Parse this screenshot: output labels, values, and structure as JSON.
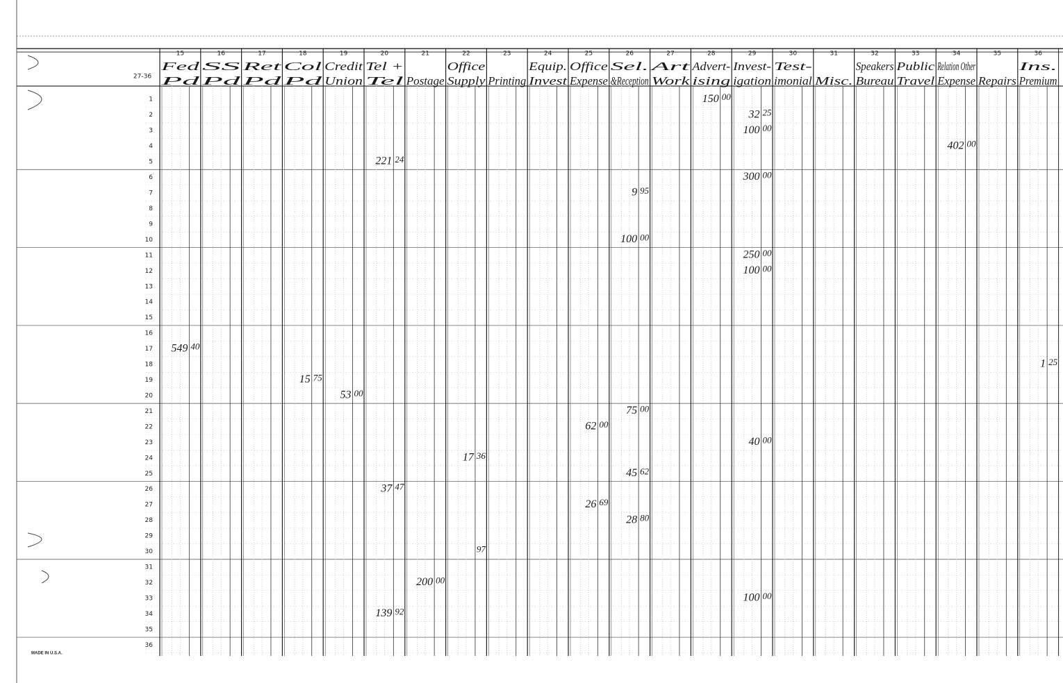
{
  "form": {
    "code": "27-36",
    "footer": "MADE IN U.S.A."
  },
  "columns": [
    {
      "number": "15",
      "header": [
        "Fed",
        "Pd"
      ]
    },
    {
      "number": "16",
      "header": [
        "SS",
        "Pd"
      ]
    },
    {
      "number": "17",
      "header": [
        "Ret",
        "Pd"
      ]
    },
    {
      "number": "18",
      "header": [
        "Col",
        "Pd"
      ]
    },
    {
      "number": "19",
      "header": [
        "Credit",
        "Union"
      ]
    },
    {
      "number": "20",
      "header": [
        "Tel +",
        "Tel"
      ]
    },
    {
      "number": "21",
      "header": [
        "Postage"
      ]
    },
    {
      "number": "22",
      "header": [
        "Office",
        "Supply"
      ]
    },
    {
      "number": "23",
      "header": [
        "Printing"
      ]
    },
    {
      "number": "24",
      "header": [
        "Equip.",
        "Invest"
      ]
    },
    {
      "number": "25",
      "header": [
        "Office",
        "Expense"
      ]
    },
    {
      "number": "26",
      "header": [
        "Sel.",
        "&Reception"
      ]
    },
    {
      "number": "27",
      "header": [
        "Art",
        "Work"
      ]
    },
    {
      "number": "28",
      "header": [
        "Advert-",
        "ising"
      ]
    },
    {
      "number": "29",
      "header": [
        "Invest-",
        "igation"
      ]
    },
    {
      "number": "30",
      "header": [
        "Test-",
        "imonial"
      ]
    },
    {
      "number": "31",
      "header": [
        "Misc."
      ]
    },
    {
      "number": "32",
      "header": [
        "Speakers",
        "Bureau"
      ]
    },
    {
      "number": "33",
      "header": [
        "Public",
        "Travel"
      ]
    },
    {
      "number": "34",
      "header": [
        "Relation Other",
        "Expense"
      ]
    },
    {
      "number": "35",
      "header": [
        "Repairs"
      ]
    },
    {
      "number": "36",
      "header": [
        "Ins.",
        "Premium"
      ]
    }
  ],
  "rows": [
    {
      "number": "1",
      "entries": [
        {
          "column": "28",
          "dollars": "150",
          "cents": "00"
        }
      ]
    },
    {
      "number": "2",
      "entries": [
        {
          "column": "29",
          "dollars": "32",
          "cents": "25"
        }
      ]
    },
    {
      "number": "3",
      "entries": [
        {
          "column": "29",
          "dollars": "100",
          "cents": "00"
        }
      ]
    },
    {
      "number": "4",
      "entries": [
        {
          "column": "34",
          "dollars": "402",
          "cents": "00"
        }
      ]
    },
    {
      "number": "5",
      "entries": [
        {
          "column": "20",
          "dollars": "221",
          "cents": "24"
        }
      ]
    },
    {
      "number": "6",
      "entries": [
        {
          "column": "29",
          "dollars": "300",
          "cents": "00"
        }
      ]
    },
    {
      "number": "7",
      "entries": [
        {
          "column": "26",
          "dollars": "9",
          "cents": "95"
        }
      ]
    },
    {
      "number": "8",
      "entries": []
    },
    {
      "number": "9",
      "entries": []
    },
    {
      "number": "10",
      "entries": [
        {
          "column": "26",
          "dollars": "100",
          "cents": "00"
        }
      ]
    },
    {
      "number": "11",
      "entries": [
        {
          "column": "29",
          "dollars": "250",
          "cents": "00"
        }
      ]
    },
    {
      "number": "12",
      "entries": [
        {
          "column": "29",
          "dollars": "100",
          "cents": "00"
        }
      ]
    },
    {
      "number": "13",
      "entries": []
    },
    {
      "number": "14",
      "entries": []
    },
    {
      "number": "15",
      "entries": []
    },
    {
      "number": "16",
      "entries": []
    },
    {
      "number": "17",
      "entries": [
        {
          "column": "15",
          "dollars": "549",
          "cents": "40"
        }
      ]
    },
    {
      "number": "18",
      "entries": [
        {
          "column": "36",
          "dollars": "1",
          "cents": "25"
        }
      ]
    },
    {
      "number": "19",
      "entries": [
        {
          "column": "18",
          "dollars": "15",
          "cents": "75"
        }
      ]
    },
    {
      "number": "20",
      "entries": [
        {
          "column": "19",
          "dollars": "53",
          "cents": "00"
        }
      ]
    },
    {
      "number": "21",
      "entries": [
        {
          "column": "26",
          "dollars": "75",
          "cents": "00"
        }
      ]
    },
    {
      "number": "22",
      "entries": [
        {
          "column": "25",
          "dollars": "62",
          "cents": "00"
        }
      ]
    },
    {
      "number": "23",
      "entries": [
        {
          "column": "29",
          "dollars": "40",
          "cents": "00"
        }
      ]
    },
    {
      "number": "24",
      "entries": [
        {
          "column": "22",
          "dollars": "17",
          "cents": "36"
        }
      ]
    },
    {
      "number": "25",
      "entries": [
        {
          "column": "26",
          "dollars": "45",
          "cents": "62"
        }
      ]
    },
    {
      "number": "26",
      "entries": [
        {
          "column": "20",
          "dollars": "37",
          "cents": "47"
        }
      ]
    },
    {
      "number": "27",
      "entries": [
        {
          "column": "25",
          "dollars": "26",
          "cents": "69"
        }
      ]
    },
    {
      "number": "28",
      "entries": [
        {
          "column": "26",
          "dollars": "28",
          "cents": "80"
        }
      ]
    },
    {
      "number": "29",
      "entries": []
    },
    {
      "number": "30",
      "entries": [
        {
          "column": "22",
          "cents": "97"
        }
      ]
    },
    {
      "number": "31",
      "entries": []
    },
    {
      "number": "32",
      "entries": [
        {
          "column": "21",
          "dollars": "200",
          "cents": "00"
        }
      ]
    },
    {
      "number": "33",
      "entries": [
        {
          "column": "29",
          "dollars": "100",
          "cents": "00"
        }
      ]
    },
    {
      "number": "34",
      "entries": [
        {
          "column": "20",
          "dollars": "139",
          "cents": "92"
        }
      ]
    },
    {
      "number": "35",
      "entries": []
    },
    {
      "number": "36",
      "entries": []
    }
  ]
}
